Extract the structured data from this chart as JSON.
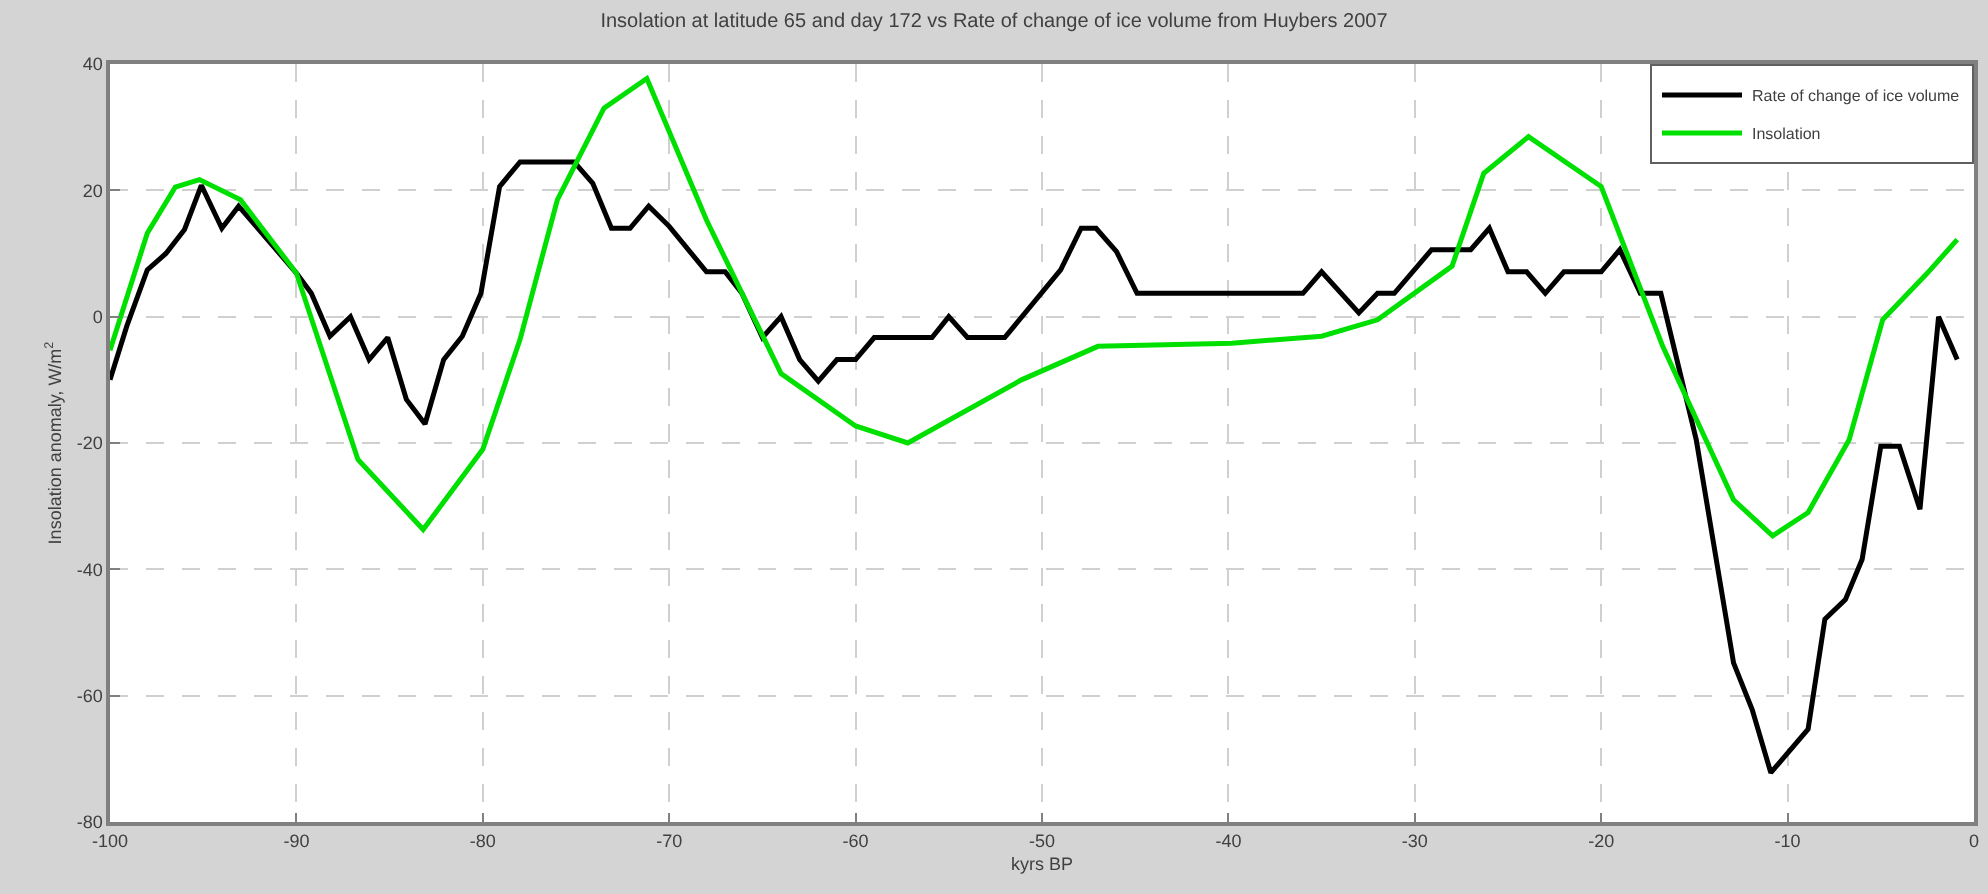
{
  "chart_data": {
    "type": "line",
    "title": "Insolation at latitude 65 and day 172 vs Rate of change of ice volume from Huybers 2007",
    "xlabel": "kyrs BP",
    "ylabel": "Insolation anomaly, W/m$^{2}$",
    "xlim": [
      -100,
      0
    ],
    "xticks": [
      -100,
      -90,
      -80,
      -70,
      -60,
      -50,
      -40,
      -30,
      -20,
      -10,
      0
    ],
    "ylim": [
      -80,
      40
    ],
    "yticks": [
      -80,
      -60,
      -40,
      -20,
      0,
      20,
      40
    ],
    "grid": true,
    "legend": "top right",
    "line_style": "solid",
    "marker": "none",
    "series": [
      {
        "name": "Rate of change of ice volume",
        "color": "#000000",
        "x": [
          -100,
          -99.1,
          -98,
          -97,
          -96,
          -95.1,
          -94,
          -93.1,
          -90,
          -89.2,
          -88.2,
          -87.1,
          -86.1,
          -85.1,
          -84.1,
          -83.1,
          -82.1,
          -81.1,
          -80.1,
          -79.1,
          -78,
          -75.1,
          -74.1,
          -73.1,
          -72.1,
          -71.1,
          -70,
          -68,
          -67,
          -66.1,
          -65,
          -64,
          -63,
          -62,
          -61,
          -60,
          -59,
          -55.9,
          -55,
          -54,
          -52,
          -49,
          -47.9,
          -47.1,
          -46,
          -44.9,
          -36,
          -35,
          -33,
          -32,
          -31.1,
          -29.1,
          -27,
          -26,
          -25,
          -24,
          -23,
          -22,
          -20,
          -19,
          -17.9,
          -16.8,
          -14.9,
          -12.9,
          -11.9,
          -10.9,
          -8.9,
          -8,
          -6.9,
          -6,
          -5,
          -4,
          -2.9,
          -1.9,
          -0.9
        ],
        "values": [
          -10,
          -1.5,
          7.4,
          10,
          13.8,
          20.8,
          14,
          17.5,
          6.9,
          3.7,
          -3.1,
          0,
          -6.8,
          -3.3,
          -13.1,
          -17,
          -6.8,
          -3.1,
          3.7,
          20.6,
          24.5,
          24.5,
          21.1,
          14,
          14,
          17.5,
          14.3,
          7.1,
          7.1,
          3.7,
          -3.3,
          0,
          -6.8,
          -10.2,
          -6.8,
          -6.8,
          -3.3,
          -3.3,
          0,
          -3.3,
          -3.3,
          7.4,
          14,
          14,
          10.3,
          3.7,
          3.7,
          7.1,
          0.6,
          3.7,
          3.7,
          10.6,
          10.6,
          14,
          7.1,
          7.1,
          3.7,
          7.1,
          7.1,
          10.6,
          3.7,
          3.7,
          -19.5,
          -54.8,
          -62.2,
          -72.2,
          -65.3,
          -47.9,
          -44.8,
          -38.4,
          -20.5,
          -20.5,
          -30.5,
          0,
          -6.8
        ]
      },
      {
        "name": "Insolation",
        "color": "#00e000",
        "x": [
          -100,
          -98,
          -96.5,
          -95.2,
          -93,
          -90,
          -86.7,
          -83.2,
          -80,
          -78,
          -76,
          -73.5,
          -71.2,
          -68,
          -64,
          -60,
          -57.2,
          -51.1,
          -47,
          -39.8,
          -35,
          -32,
          -28,
          -26.3,
          -23.9,
          -20,
          -16.7,
          -12.9,
          -10.8,
          -8.9,
          -6.7,
          -4.9,
          -2.5,
          -0.9
        ],
        "values": [
          -5.3,
          13.2,
          20.5,
          21.7,
          18.5,
          6.9,
          -22.6,
          -33.7,
          -21,
          -3.6,
          18.5,
          33,
          37.7,
          15.3,
          -9,
          -17.3,
          -20,
          -10,
          -4.7,
          -4.2,
          -3.1,
          -0.5,
          8,
          22.7,
          28.5,
          20.6,
          -4.7,
          -29,
          -34.7,
          -31,
          -19.5,
          -0.5,
          6.9,
          12.2
        ]
      }
    ]
  }
}
